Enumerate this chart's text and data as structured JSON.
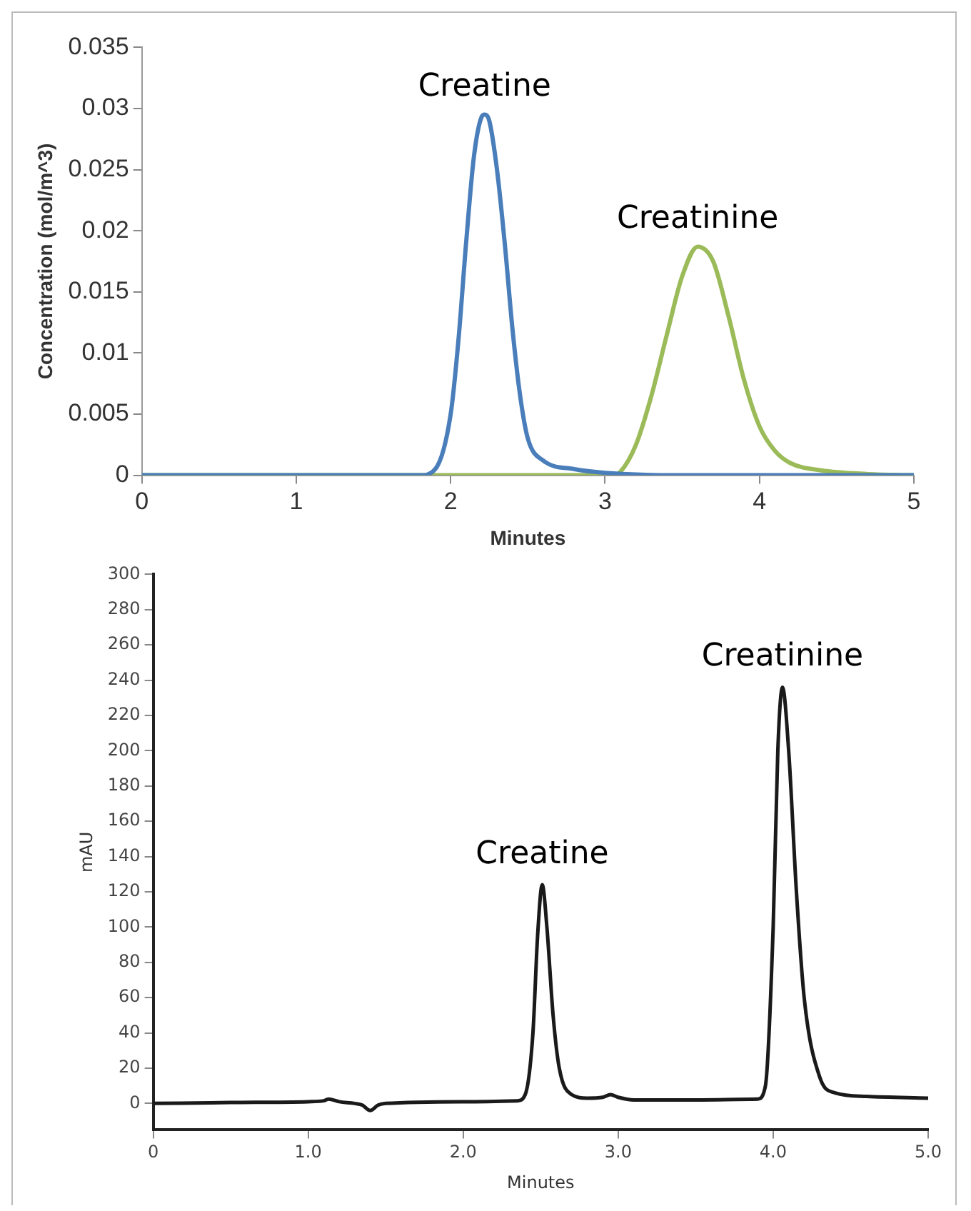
{
  "chart_data": [
    {
      "type": "line",
      "xlabel": "Minutes",
      "ylabel": "Concentration (mol/m^3)",
      "xlim": [
        0,
        5
      ],
      "xticks": [
        0,
        1,
        2,
        3,
        4,
        5
      ],
      "ylim": [
        0,
        0.035
      ],
      "yticks": [
        0,
        0.005,
        0.01,
        0.015,
        0.02,
        0.025,
        0.03,
        0.035
      ],
      "grid": false,
      "legend": false,
      "marker": "none",
      "line_style": "solid",
      "series": [
        {
          "name": "Creatine",
          "color": "#4a7ebb",
          "x": [
            0,
            1,
            1.8,
            1.9,
            2.0,
            2.05,
            2.1,
            2.15,
            2.2,
            2.22,
            2.25,
            2.3,
            2.35,
            2.4,
            2.45,
            2.5,
            2.6,
            2.8,
            3.0,
            3.5,
            5
          ],
          "values": [
            0,
            0,
            0,
            0.0005,
            0.005,
            0.011,
            0.019,
            0.026,
            0.0293,
            0.0295,
            0.029,
            0.025,
            0.019,
            0.012,
            0.0065,
            0.003,
            0.0012,
            0.0005,
            0.0002,
            0,
            0
          ]
        },
        {
          "name": "Creatinine",
          "color": "#9bbb59",
          "x": [
            0,
            1,
            2,
            3.05,
            3.1,
            3.2,
            3.3,
            3.4,
            3.5,
            3.6,
            3.7,
            3.8,
            3.9,
            4.0,
            4.1,
            4.2,
            4.4,
            4.7,
            5
          ],
          "values": [
            0,
            0,
            0,
            0,
            0.0003,
            0.0025,
            0.0065,
            0.0115,
            0.0163,
            0.0187,
            0.0175,
            0.013,
            0.0078,
            0.004,
            0.002,
            0.001,
            0.0004,
            0.0001,
            0
          ]
        }
      ]
    },
    {
      "type": "line",
      "xlabel": "Minutes",
      "ylabel": "mAU",
      "xlim": [
        0,
        5
      ],
      "xticks": [
        0,
        {
          "value": 1,
          "label": "1.0"
        },
        {
          "value": 2,
          "label": "2.0"
        },
        {
          "value": 3,
          "label": "3.0"
        },
        {
          "value": 4,
          "label": "4.0"
        },
        {
          "value": 5,
          "label": "5.0"
        }
      ],
      "ylim": [
        -15,
        300
      ],
      "yticks": [
        0,
        20,
        40,
        60,
        80,
        100,
        120,
        140,
        160,
        180,
        200,
        220,
        240,
        260,
        280,
        300
      ],
      "grid": false,
      "legend": false,
      "marker": "none",
      "line_style": "solid",
      "series": [
        {
          "color": "#1a1a1a",
          "x": [
            0,
            0.5,
            1.0,
            1.1,
            1.13,
            1.2,
            1.3,
            1.35,
            1.4,
            1.45,
            1.5,
            2.0,
            2.35,
            2.4,
            2.45,
            2.48,
            2.51,
            2.54,
            2.58,
            2.62,
            2.7,
            2.8,
            2.9,
            2.95,
            3.0,
            3.1,
            3.5,
            3.9,
            3.95,
            4.0,
            4.03,
            4.06,
            4.1,
            4.15,
            4.2,
            4.3,
            4.4,
            4.6,
            5.0
          ],
          "values": [
            0,
            0.5,
            1,
            1.5,
            2.5,
            1,
            0,
            -1,
            -4,
            -1,
            0,
            1,
            1.5,
            5,
            40,
            95,
            124,
            100,
            50,
            20,
            5,
            3,
            3.5,
            5,
            3.5,
            2,
            2,
            2.5,
            10,
            100,
            200,
            236,
            200,
            120,
            60,
            15,
            6,
            4,
            3
          ]
        }
      ],
      "annotations": [
        {
          "text": "Creatine",
          "x": 2.51,
          "y": 124
        },
        {
          "text": "Creatinine",
          "x": 4.06,
          "y": 236
        }
      ]
    }
  ]
}
